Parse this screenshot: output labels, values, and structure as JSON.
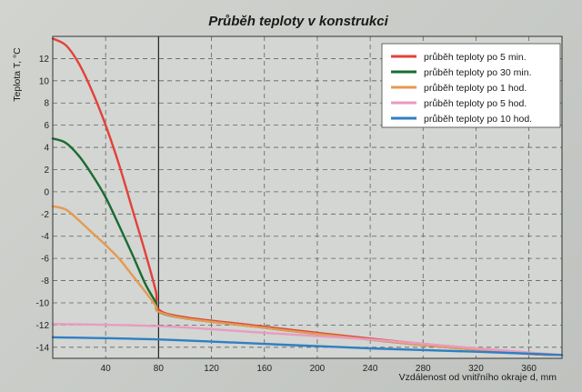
{
  "chart_data": {
    "type": "line",
    "title": "Průběh teploty v konstrukci",
    "ylabel": "Teplota T, °C",
    "xlabel": "Vzdálenost od vnitřního okraje d, mm",
    "xlim": [
      0,
      385
    ],
    "ylim": [
      -15,
      14
    ],
    "xticks": [
      40,
      80,
      120,
      160,
      200,
      240,
      280,
      320,
      360
    ],
    "yticks": [
      12,
      10,
      8,
      6,
      4,
      2,
      0,
      -2,
      -4,
      -6,
      -8,
      -10,
      -12,
      -14
    ],
    "grid": true,
    "divider_x": 80,
    "legend_position": "top-right",
    "colors": {
      "background": "#d3d6d2",
      "grid": "#5f6360"
    },
    "series": [
      {
        "name": "průběh teploty po 5 min.",
        "color": "#e3413a",
        "points": [
          [
            0,
            13.8
          ],
          [
            10,
            13.2
          ],
          [
            20,
            11.5
          ],
          [
            30,
            9
          ],
          [
            40,
            6
          ],
          [
            50,
            2.5
          ],
          [
            60,
            -1.5
          ],
          [
            70,
            -5.5
          ],
          [
            78,
            -9
          ],
          [
            80,
            -10.6
          ],
          [
            100,
            -11.3
          ],
          [
            150,
            -12
          ],
          [
            200,
            -12.7
          ],
          [
            280,
            -13.7
          ],
          [
            360,
            -14.5
          ],
          [
            385,
            -14.7
          ]
        ]
      },
      {
        "name": "průběh teploty po 30 min.",
        "color": "#1a6b33",
        "points": [
          [
            0,
            4.8
          ],
          [
            10,
            4.4
          ],
          [
            20,
            3.2
          ],
          [
            30,
            1.5
          ],
          [
            40,
            -0.5
          ],
          [
            50,
            -3
          ],
          [
            60,
            -5.6
          ],
          [
            70,
            -8.3
          ],
          [
            78,
            -10
          ],
          [
            80,
            -10.8
          ],
          [
            100,
            -11.4
          ],
          [
            150,
            -12.1
          ],
          [
            200,
            -12.8
          ],
          [
            280,
            -13.8
          ],
          [
            360,
            -14.6
          ],
          [
            385,
            -14.7
          ]
        ]
      },
      {
        "name": "průběh teploty po 1 hod.",
        "color": "#e59a52",
        "points": [
          [
            0,
            -1.3
          ],
          [
            10,
            -1.6
          ],
          [
            20,
            -2.6
          ],
          [
            30,
            -3.7
          ],
          [
            40,
            -4.8
          ],
          [
            50,
            -6
          ],
          [
            60,
            -7.5
          ],
          [
            70,
            -9
          ],
          [
            78,
            -10.3
          ],
          [
            80,
            -10.8
          ],
          [
            100,
            -11.4
          ],
          [
            150,
            -12.1
          ],
          [
            200,
            -12.8
          ],
          [
            280,
            -13.8
          ],
          [
            360,
            -14.6
          ],
          [
            385,
            -14.7
          ]
        ]
      },
      {
        "name": "průběh teploty po 5 hod.",
        "color": "#e99bc0",
        "points": [
          [
            0,
            -11.9
          ],
          [
            80,
            -12.1
          ],
          [
            160,
            -12.7
          ],
          [
            240,
            -13.3
          ],
          [
            320,
            -14.1
          ],
          [
            385,
            -14.7
          ]
        ]
      },
      {
        "name": "průběh teploty po 10 hod.",
        "color": "#2f7fc4",
        "points": [
          [
            0,
            -13.1
          ],
          [
            80,
            -13.3
          ],
          [
            160,
            -13.7
          ],
          [
            240,
            -14.1
          ],
          [
            320,
            -14.4
          ],
          [
            385,
            -14.7
          ]
        ]
      }
    ]
  }
}
